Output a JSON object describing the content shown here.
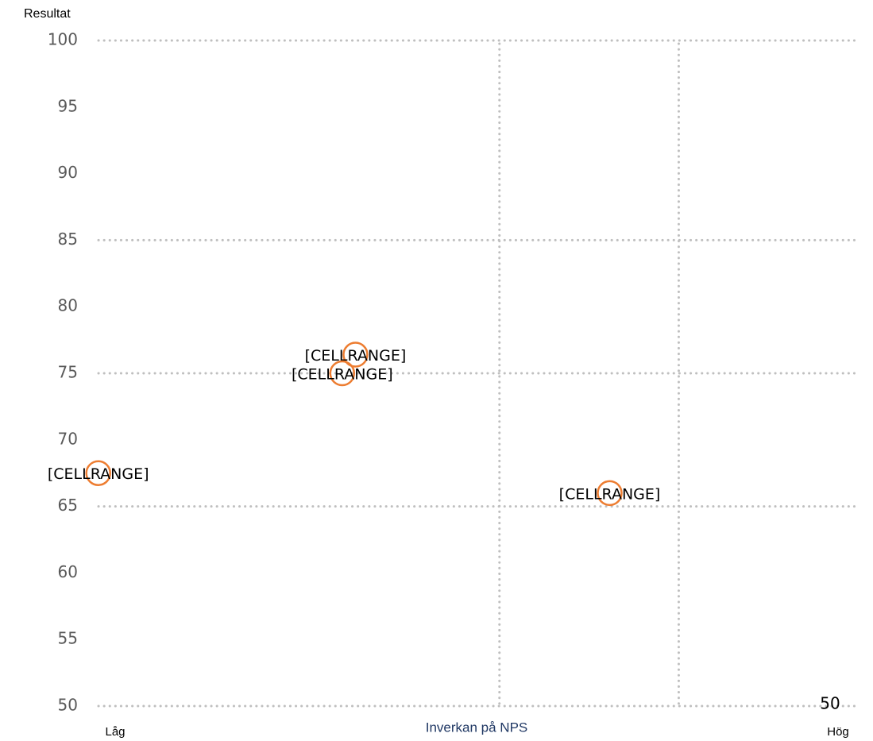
{
  "chart_data": {
    "type": "scatter",
    "y_title": "Resultat",
    "x_title": "Inverkan på NPS",
    "x_low_label": "Låg",
    "x_high_label": "Hög",
    "x": [
      0.2,
      17.7,
      16.8,
      35.0
    ],
    "values": [
      67.5,
      76.4,
      75.0,
      66.0
    ],
    "point_labels": [
      "[CELLRANGE]",
      "[CELLRANGE]",
      "[CELLRANGE]",
      "[CELLRANGE]"
    ],
    "color": "#ed7d31",
    "xlim": [
      0,
      52
    ],
    "xticks": [
      50
    ],
    "ylim": [
      50,
      100
    ],
    "yticks": [
      50,
      55,
      60,
      65,
      70,
      75,
      80,
      85,
      90,
      95,
      100
    ],
    "y_grid_lines": [
      50,
      65,
      75,
      85,
      100
    ],
    "x_grid_lines": [
      27.5,
      39.7
    ]
  }
}
